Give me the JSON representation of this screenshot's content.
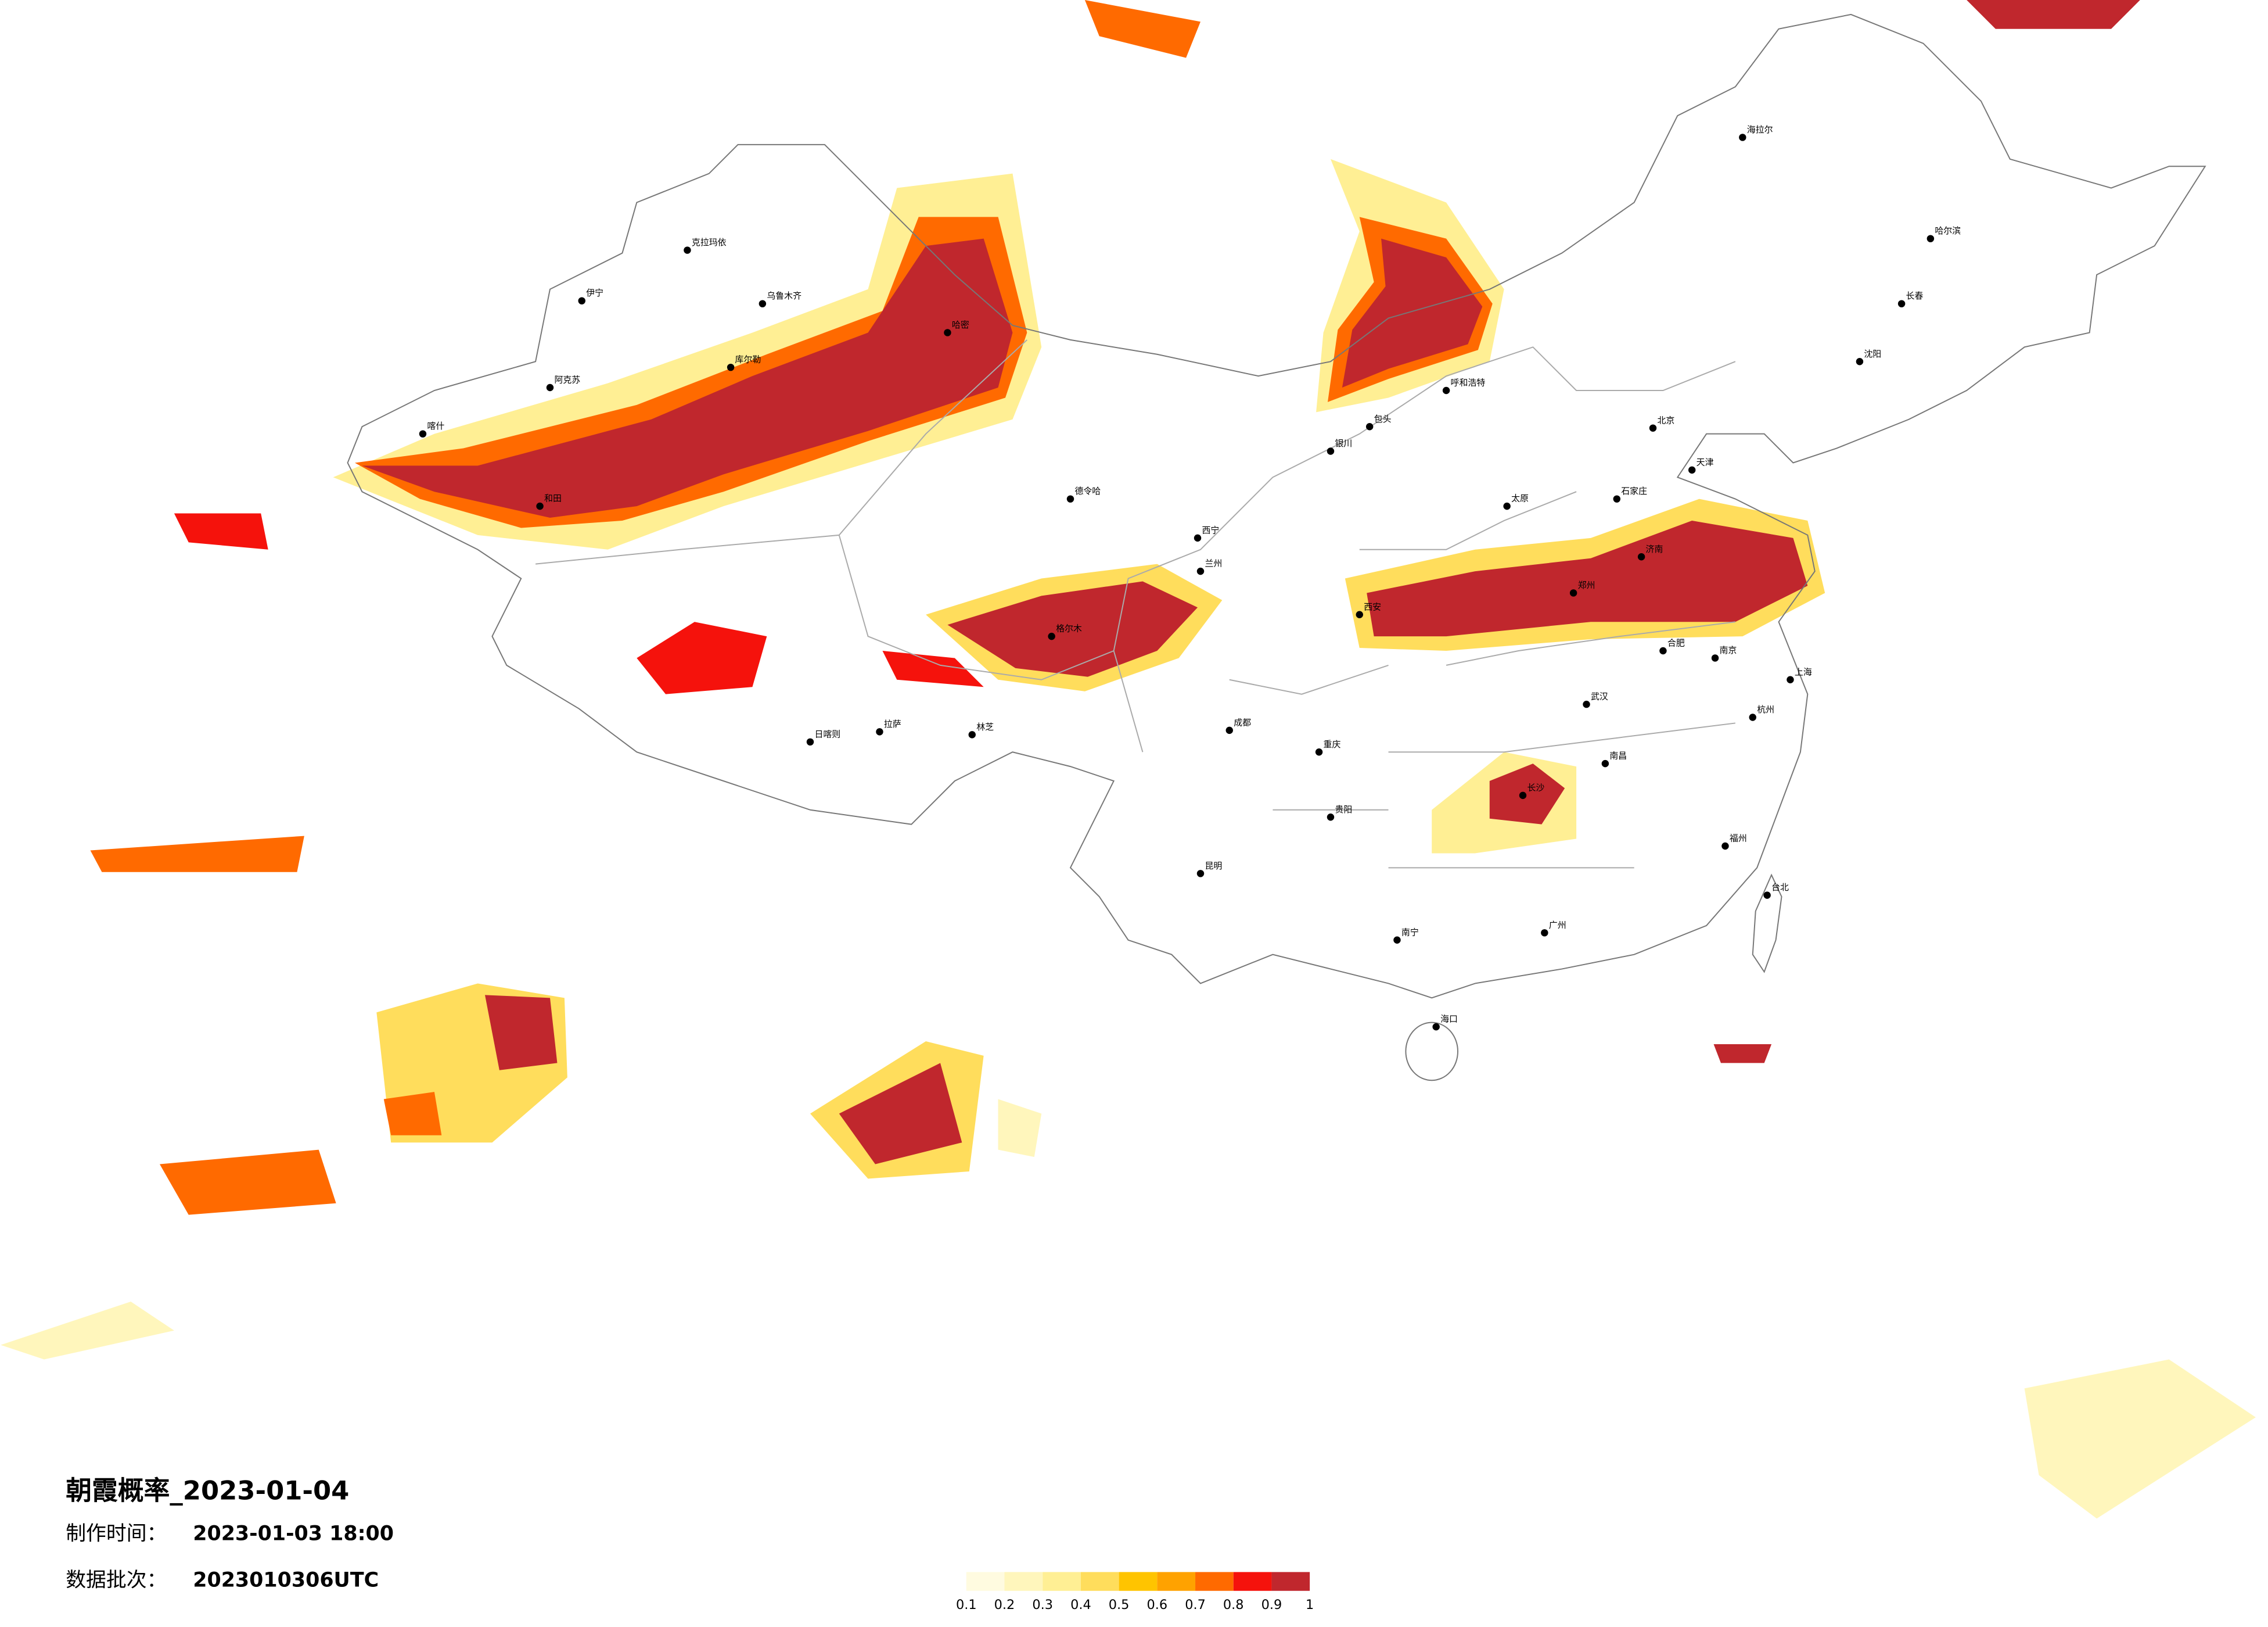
{
  "title": "朝霞概率_2023-01-04",
  "made_time": {
    "label": "制作时间：",
    "value": "2023-01-03 18:00"
  },
  "batch": {
    "label": "数据批次：",
    "value": "2023010306UTC"
  },
  "legend": {
    "ticks": [
      0.1,
      0.2,
      0.3,
      0.4,
      0.5,
      0.6,
      0.7,
      0.8,
      0.9,
      1
    ],
    "colors": [
      "#fffbe0",
      "#fff6bc",
      "#ffef94",
      "#ffdd5c",
      "#ffc400",
      "#ffa200",
      "#ff6a00",
      "#f5120c",
      "#c0272d"
    ]
  },
  "cities": [
    "克拉玛依",
    "乌鲁木齐",
    "伊宁",
    "阿克苏",
    "库尔勒",
    "哈密",
    "喀什",
    "和田",
    "德令哈",
    "格尔木",
    "拉萨",
    "日喀则",
    "林芝",
    "西宁",
    "兰州",
    "银川",
    "呼和浩特",
    "包头",
    "北京",
    "天津",
    "石家庄",
    "太原",
    "济南",
    "郑州",
    "西安",
    "成都",
    "重庆",
    "贵阳",
    "昆明",
    "南宁",
    "海口",
    "长沙",
    "武汉",
    "南昌",
    "合肥",
    "南京",
    "上海",
    "杭州",
    "福州",
    "广州",
    "哈尔滨",
    "长春",
    "沈阳",
    "海拉尔",
    "台北"
  ]
}
